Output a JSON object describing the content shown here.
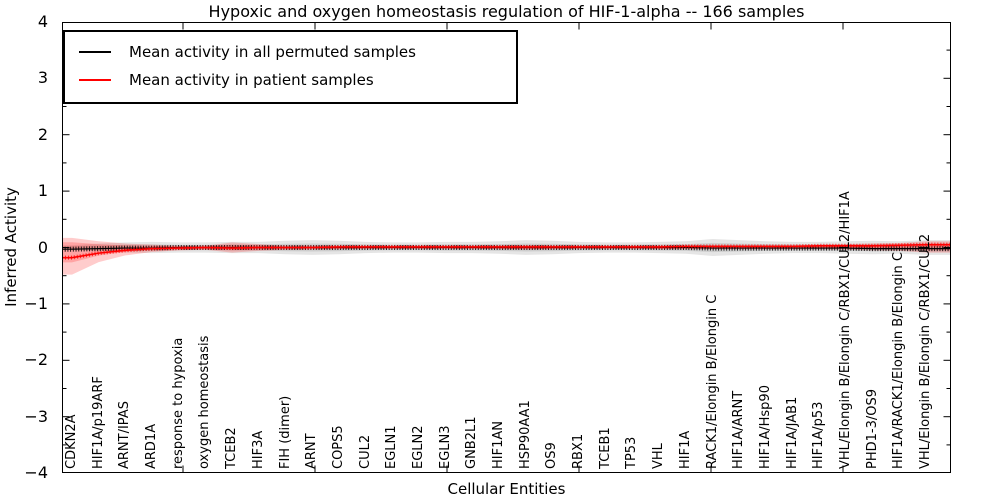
{
  "chart_data": {
    "type": "line",
    "title": "Hypoxic and oxygen homeostasis regulation of HIF-1-alpha -- 166 samples",
    "xlabel": "Cellular Entities",
    "ylabel": "Inferred Activity",
    "ylim": [
      -4,
      4
    ],
    "grid": false,
    "legend_position": "upper left",
    "y_ticks": [
      {
        "label": "4",
        "value": 4
      },
      {
        "label": "3",
        "value": 3
      },
      {
        "label": "2",
        "value": 2
      },
      {
        "label": "1",
        "value": 1
      },
      {
        "label": "0",
        "value": 0
      },
      {
        "label": "−1",
        "value": -1
      },
      {
        "label": "−2",
        "value": -2
      },
      {
        "label": "−3",
        "value": -3
      },
      {
        "label": "−4",
        "value": -4
      }
    ],
    "categories": [
      "CDKN2A",
      "HIF1A/p19ARF",
      "ARNT/IPAS",
      "ARD1A",
      "response to hypoxia",
      "oxygen homeostasis",
      "TCEB2",
      "HIF3A",
      "FIH (dimer)",
      "ARNT",
      "COPS5",
      "CUL2",
      "EGLN1",
      "EGLN2",
      "EGLN3",
      "GNB2L1",
      "HIF1AN",
      "HSP90AA1",
      "OS9",
      "RBX1",
      "TCEB1",
      "TP53",
      "VHL",
      "HIF1A",
      "RACK1/Elongin B/Elongin C",
      "HIF1A/ARNT",
      "HIF1A/Hsp90",
      "HIF1A/JAB1",
      "HIF1A/p53",
      "VHL/Elongin B/Elongin C/RBX1/CUL2/HIF1A",
      "PHD1-3/OS9",
      "HIF1A/RACK1/Elongin B/Elongin C",
      "VHL/Elongin B/Elongin C/RBX1/CUL2"
    ],
    "series": [
      {
        "name": "Mean activity in all permuted samples",
        "color": "#000000",
        "values": [
          -0.03,
          -0.02,
          -0.01,
          -0.01,
          0,
          0,
          0,
          0,
          0,
          0,
          0,
          0,
          0,
          0,
          0,
          0,
          0,
          0,
          0,
          0,
          0,
          0,
          0,
          0,
          -0.01,
          -0.01,
          -0.01,
          -0.01,
          -0.01,
          -0.01,
          -0.02,
          -0.02,
          -0.02
        ]
      },
      {
        "name": "Mean activity in patient samples",
        "color": "#ff0000",
        "values": [
          -0.18,
          -0.1,
          -0.05,
          -0.02,
          -0.01,
          0,
          -0.01,
          0,
          0,
          0,
          0.01,
          0.01,
          0.01,
          0.01,
          0.01,
          0.01,
          0.01,
          0.01,
          0.01,
          0.01,
          0.01,
          0.01,
          0.01,
          0.02,
          0.02,
          0.02,
          0.02,
          0.02,
          0.03,
          0.03,
          0.03,
          0.04,
          0.05
        ]
      }
    ],
    "bands": [
      {
        "name": "permuted-samples-band",
        "fill": "rgba(0,0,0,0.10)",
        "upper": [
          0.04,
          0.07,
          0.09,
          0.1,
          0.09,
          0.09,
          0.1,
          0.1,
          0.12,
          0.13,
          0.12,
          0.1,
          0.09,
          0.09,
          0.1,
          0.1,
          0.11,
          0.13,
          0.12,
          0.1,
          0.09,
          0.09,
          0.1,
          0.11,
          0.15,
          0.13,
          0.11,
          0.1,
          0.1,
          0.11,
          0.12,
          0.11,
          0.13
        ],
        "lower": [
          -0.04,
          -0.07,
          -0.09,
          -0.1,
          -0.09,
          -0.09,
          -0.1,
          -0.1,
          -0.12,
          -0.13,
          -0.12,
          -0.1,
          -0.09,
          -0.09,
          -0.1,
          -0.1,
          -0.11,
          -0.13,
          -0.12,
          -0.1,
          -0.09,
          -0.09,
          -0.1,
          -0.11,
          -0.15,
          -0.13,
          -0.11,
          -0.1,
          -0.1,
          -0.11,
          -0.12,
          -0.11,
          -0.13
        ]
      },
      {
        "name": "patient-samples-band",
        "fill": "rgba(255,0,0,0.20)",
        "upper": [
          0.17,
          0.11,
          0.07,
          0.05,
          0.03,
          0.03,
          0.09,
          0.06,
          0.03,
          0.03,
          0.02,
          0.02,
          0.02,
          0.02,
          0.02,
          0.02,
          0.03,
          0.04,
          0.03,
          0.02,
          0.02,
          0.02,
          0.03,
          0.03,
          0.04,
          0.04,
          0.04,
          0.04,
          0.05,
          0.06,
          0.07,
          0.08,
          0.11
        ],
        "lower": [
          -0.48,
          -0.26,
          -0.14,
          -0.08,
          -0.05,
          -0.04,
          -0.09,
          -0.06,
          -0.04,
          -0.03,
          -0.03,
          -0.02,
          -0.02,
          -0.02,
          -0.02,
          -0.02,
          -0.03,
          -0.04,
          -0.03,
          -0.02,
          -0.02,
          -0.02,
          -0.03,
          -0.03,
          -0.03,
          -0.03,
          -0.03,
          -0.03,
          -0.03,
          -0.04,
          -0.05,
          -0.06,
          -0.09
        ]
      }
    ],
    "colors": {
      "permuted_line": "#000000",
      "patient_line": "#ff0000",
      "axis": "#000000"
    }
  }
}
